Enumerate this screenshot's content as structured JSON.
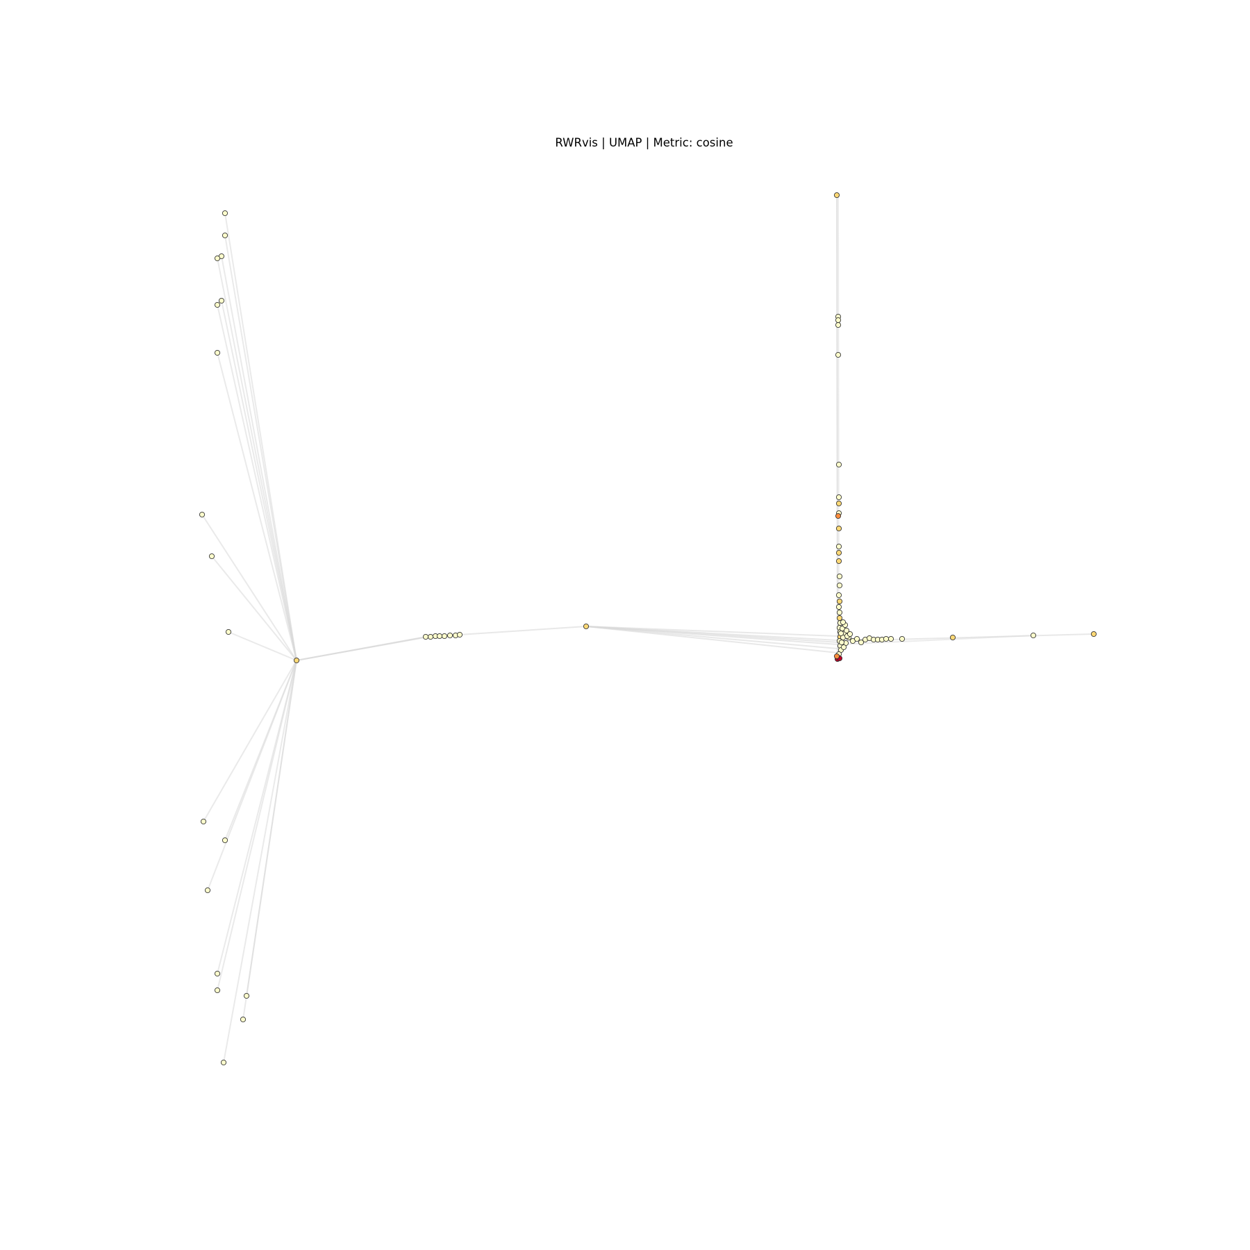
{
  "title": "RWRvis | UMAP | Metric: cosine",
  "colors": {
    "edge": "#d9d9d9",
    "node_border": "#333333",
    "node_low": "#ffffcc",
    "node_mid": "#fed976",
    "node_high": "#fd8d3c",
    "node_top": "#bd0026"
  }
}
